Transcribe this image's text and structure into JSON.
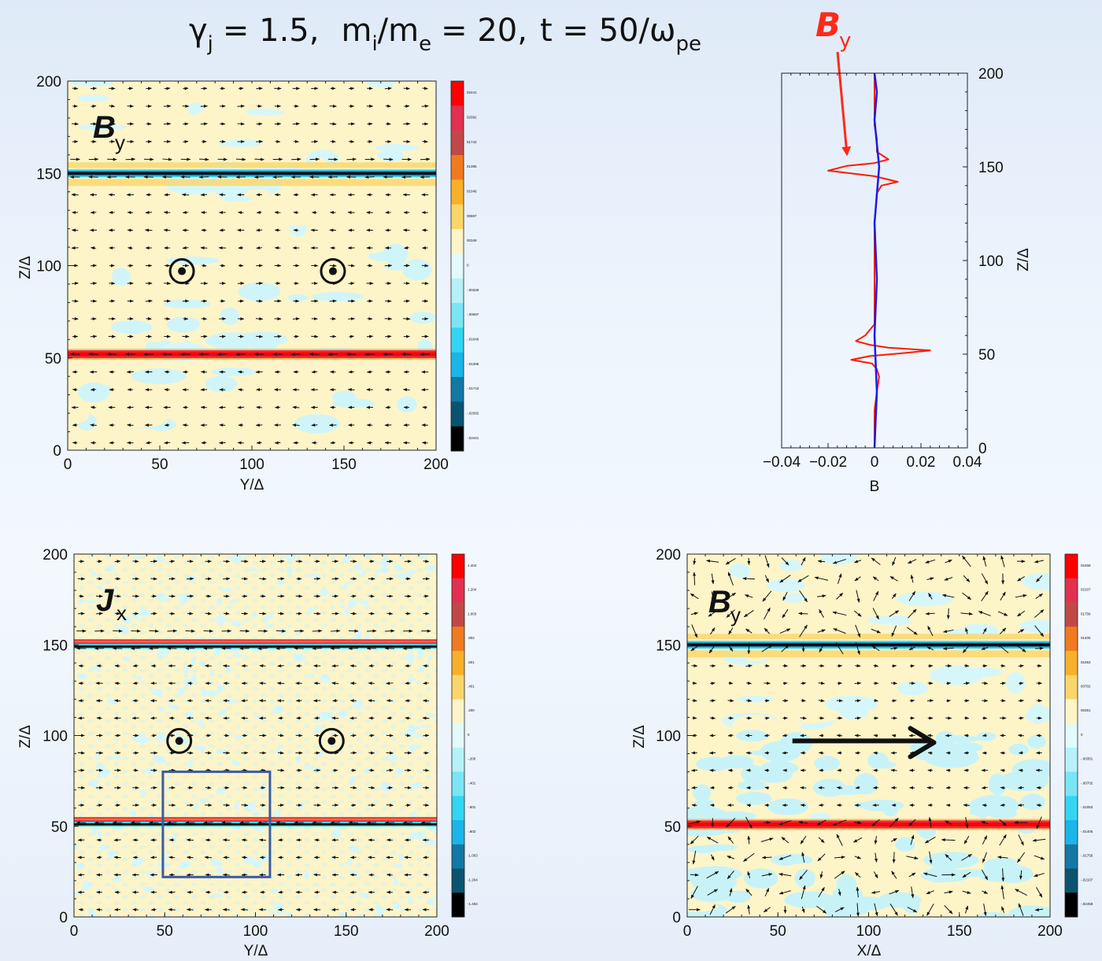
{
  "title": {
    "gamma_symbol": "γ",
    "gamma_sub": "j",
    "gamma_value": "= 1.5,",
    "mass_m1": "m",
    "mass_sub1": "i",
    "mass_slash": "/m",
    "mass_sub2": "e",
    "mass_value": "= 20,",
    "time_text": "t = 50/ω",
    "time_sub": "pe",
    "by_label": "B",
    "by_sub": "y"
  },
  "colors": {
    "red": "#ff2a1a",
    "profile_red": "#ff1a00",
    "profile_blue": "#1a1aee",
    "box": "#3b5aa0"
  },
  "chart_data": [
    {
      "type": "heatmap",
      "panel_label": "B",
      "panel_sub": "y",
      "xlabel": "Y/Δ",
      "ylabel": "Z/Δ",
      "xlim": [
        0,
        200
      ],
      "ylim": [
        0,
        200
      ],
      "xticks": [
        "0",
        "50",
        "100",
        "150",
        "200"
      ],
      "yticks": [
        "0",
        "50",
        "100",
        "150",
        "200"
      ],
      "colorbar": [
        "02441",
        "02092",
        "01743",
        "01395",
        "01046",
        "00697",
        "00349",
        "0",
        "-.00349",
        "-.00697",
        "-.01046",
        "-.01395",
        "-.01743",
        "-.02092",
        "-.02441"
      ],
      "current_sheets": [
        {
          "z": 150,
          "sign": "negative"
        },
        {
          "z": 52,
          "sign": "positive"
        }
      ],
      "out_of_plane_markers": [
        {
          "y": 62,
          "z": 97
        },
        {
          "y": 144,
          "z": 97
        }
      ],
      "arrow_pattern": "uniform"
    },
    {
      "type": "line",
      "xlabel": "B",
      "ylabel": "Z/Δ",
      "xlim": [
        -0.04,
        0.04
      ],
      "ylim": [
        0,
        200
      ],
      "xticks": [
        "−0.04",
        "−0.02",
        "0",
        "0.02",
        "0.04"
      ],
      "yticks": [
        "0",
        "50",
        "100",
        "150",
        "200"
      ],
      "annotation": {
        "label": "B",
        "sub": "y",
        "points_to": {
          "x": -0.018,
          "z": 153
        }
      },
      "series": [
        {
          "color": "red",
          "points": [
            [
              0.0,
              0
            ],
            [
              0.0,
              20
            ],
            [
              0.001,
              30
            ],
            [
              0.002,
              38
            ],
            [
              0.001,
              42
            ],
            [
              -0.001,
              45
            ],
            [
              -0.01,
              47
            ],
            [
              -0.002,
              49
            ],
            [
              0.012,
              50.5
            ],
            [
              0.024,
              52
            ],
            [
              0.006,
              53.5
            ],
            [
              -0.002,
              55
            ],
            [
              -0.008,
              57
            ],
            [
              -0.004,
              60
            ],
            [
              0.0,
              66
            ],
            [
              0.0,
              120
            ],
            [
              0.001,
              136
            ],
            [
              0.003,
              140
            ],
            [
              0.01,
              142
            ],
            [
              0.0,
              145
            ],
            [
              -0.02,
              148
            ],
            [
              -0.012,
              150.5
            ],
            [
              0.0,
              152
            ],
            [
              0.006,
              154
            ],
            [
              0.001,
              158
            ],
            [
              0.001,
              165
            ],
            [
              0.0,
              172
            ],
            [
              0.0,
              200
            ]
          ]
        },
        {
          "color": "blue",
          "points": [
            [
              0.0,
              0
            ],
            [
              0.001,
              30
            ],
            [
              0.0,
              60
            ],
            [
              0.001,
              90
            ],
            [
              0.0,
              120
            ],
            [
              0.002,
              150
            ],
            [
              0.0,
              175
            ],
            [
              0.001,
              190
            ],
            [
              0.0,
              200
            ]
          ]
        }
      ]
    },
    {
      "type": "heatmap",
      "panel_label": "J",
      "panel_sub": "x",
      "xlabel": "Y/Δ",
      "ylabel": "Z/Δ",
      "xlim": [
        0,
        200
      ],
      "ylim": [
        0,
        200
      ],
      "xticks": [
        "0",
        "50",
        "100",
        "150",
        "200"
      ],
      "yticks": [
        "0",
        "50",
        "100",
        "150",
        "200"
      ],
      "colorbar": [
        "1.404",
        "1.204",
        "1.003",
        ".802",
        ".601",
        ".401",
        ".200",
        "0",
        "-.200",
        "-.401",
        "-.601",
        "-.802",
        "-1.003",
        "-1.204",
        "-1.404"
      ],
      "current_sheets": [
        {
          "z": 150,
          "sign": "double"
        },
        {
          "z": 52,
          "sign": "double"
        }
      ],
      "out_of_plane_markers": [
        {
          "y": 58,
          "z": 97
        },
        {
          "y": 142,
          "z": 97
        }
      ],
      "highlight_box": {
        "y0": 49,
        "y1": 108,
        "z0": 22,
        "z1": 80
      },
      "arrow_pattern": "uniform"
    },
    {
      "type": "heatmap",
      "panel_label": "B",
      "panel_sub": "y",
      "xlabel": "X/Δ",
      "ylabel": "Z/Δ",
      "xlim": [
        0,
        200
      ],
      "ylim": [
        0,
        200
      ],
      "xticks": [
        "0",
        "50",
        "100",
        "150",
        "200"
      ],
      "yticks": [
        "0",
        "50",
        "100",
        "150",
        "200"
      ],
      "colorbar": [
        "02458",
        "02107",
        "01756",
        "01405",
        "01053",
        "00702",
        "00351",
        "0",
        "-.00351",
        "-.00702",
        "-.01053",
        "-.01405",
        "-.01756",
        "-.02107",
        "-.02458"
      ],
      "current_sheets": [
        {
          "z": 150,
          "sign": "negative"
        },
        {
          "z": 51,
          "sign": "positive"
        }
      ],
      "flow_arrow": {
        "x0": 58,
        "x1": 136,
        "z": 97
      },
      "arrow_pattern": "turbulent"
    }
  ]
}
